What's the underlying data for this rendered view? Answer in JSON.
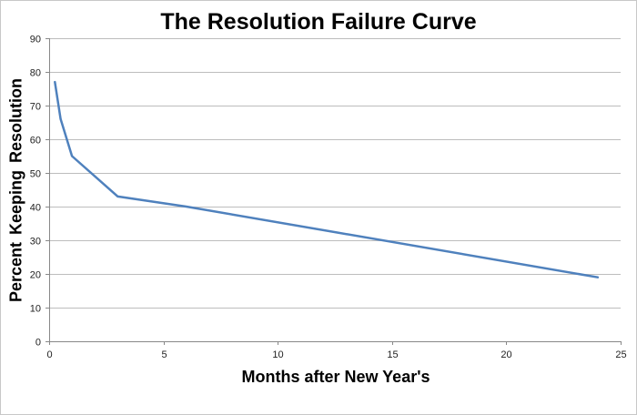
{
  "chart_data": {
    "type": "line",
    "title": "The Resolution Failure Curve",
    "xlabel": "Months after New Year's",
    "ylabel": "Percent Keeping  Resolution",
    "xlim": [
      0,
      25
    ],
    "ylim": [
      0,
      90
    ],
    "xticks": [
      0,
      5,
      10,
      15,
      20,
      25
    ],
    "yticks": [
      0,
      10,
      20,
      30,
      40,
      50,
      60,
      70,
      80,
      90
    ],
    "grid": "horizontal",
    "legend": "none",
    "series": [
      {
        "color": "#4f81bd",
        "x": [
          0.25,
          0.5,
          1,
          3,
          6,
          24
        ],
        "y": [
          77,
          66,
          55,
          43,
          40,
          19
        ]
      }
    ]
  }
}
